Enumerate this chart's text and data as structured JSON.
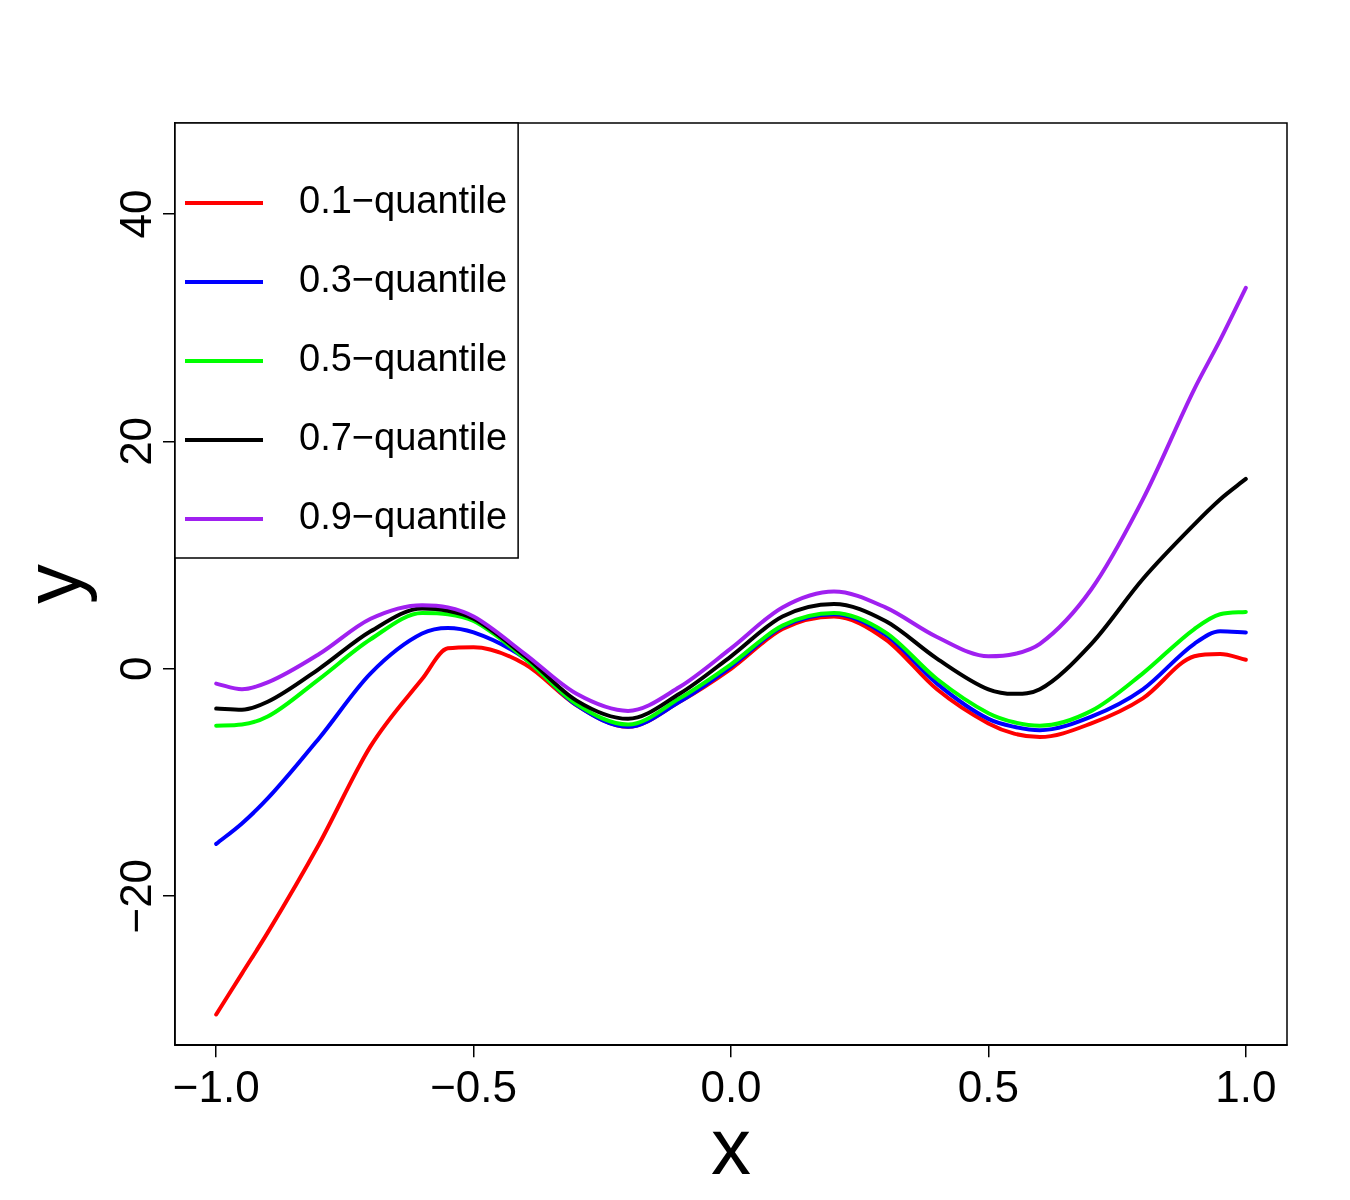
{
  "chart_data": {
    "type": "line",
    "xlabel": "x",
    "ylabel": "y",
    "x": [
      -1,
      -0.95,
      -0.9,
      -0.8,
      -0.7,
      -0.6,
      -0.55,
      -0.5,
      -0.4,
      -0.3,
      -0.2,
      -0.1,
      0,
      0.1,
      0.2,
      0.3,
      0.4,
      0.5,
      0.55,
      0.6,
      0.7,
      0.8,
      0.9,
      0.95,
      1.0
    ],
    "series": [
      {
        "name": "0.1−quantile",
        "color": "#ff0000",
        "values": [
          -30.4,
          -26.8,
          -23.2,
          -15.4,
          -6.8,
          -0.9,
          1.8,
          1.9,
          0.4,
          -3.2,
          -5.1,
          -2.9,
          0,
          3.5,
          4.6,
          2.6,
          -1.8,
          -4.8,
          -5.7,
          -6.0,
          -4.8,
          -2.6,
          1.1,
          1.3,
          0.8
        ]
      },
      {
        "name": "0.3−quantile",
        "color": "#0000ff",
        "values": [
          -15.4,
          -13.6,
          -11.4,
          -6.1,
          -0.4,
          3.1,
          3.6,
          3.2,
          0.9,
          -3.2,
          -5.1,
          -2.9,
          0.2,
          3.7,
          4.8,
          3.0,
          -1.3,
          -4.4,
          -5.1,
          -5.4,
          -4.2,
          -1.8,
          2.2,
          3.3,
          3.2
        ]
      },
      {
        "name": "0.5−quantile",
        "color": "#00ff00",
        "values": [
          -5.0,
          -4.9,
          -4.2,
          -0.9,
          2.6,
          4.9,
          4.8,
          4.2,
          0.9,
          -3.1,
          -4.9,
          -2.6,
          0.4,
          3.8,
          4.9,
          3.2,
          -0.9,
          -3.9,
          -4.7,
          -5.0,
          -3.7,
          -0.4,
          3.5,
          4.8,
          5.0
        ]
      },
      {
        "name": "0.7−quantile",
        "color": "#000000",
        "values": [
          -3.5,
          -3.6,
          -2.9,
          0,
          3.3,
          5.3,
          5.1,
          4.4,
          1.1,
          -2.8,
          -4.4,
          -2.2,
          1.1,
          4.6,
          5.7,
          4.2,
          0.9,
          -1.8,
          -2.2,
          -1.8,
          2.2,
          7.9,
          12.7,
          14.9,
          16.7
        ]
      },
      {
        "name": "0.9−quantile",
        "color": "#a020f0",
        "values": [
          -1.3,
          -1.8,
          -1.2,
          1.3,
          4.4,
          5.6,
          5.4,
          4.6,
          1.3,
          -2.2,
          -3.7,
          -1.6,
          1.8,
          5.4,
          6.8,
          5.4,
          2.8,
          1.1,
          1.3,
          2.2,
          7.0,
          14.9,
          24.6,
          28.9,
          33.5
        ]
      }
    ],
    "xlim": [
      -1.08,
      1.08
    ],
    "ylim": [
      -33.1,
      48
    ],
    "xticks": [
      {
        "value": -1,
        "label": "−1.0"
      },
      {
        "value": -0.5,
        "label": "−0.5"
      },
      {
        "value": 0,
        "label": "0.0"
      },
      {
        "value": 0.5,
        "label": "0.5"
      },
      {
        "value": 1,
        "label": "1.0"
      }
    ],
    "yticks": [
      {
        "value": -20,
        "label": "−20"
      },
      0,
      20,
      40
    ],
    "grid": false,
    "legend": "top left",
    "marker": "none",
    "line_style": "solid"
  }
}
